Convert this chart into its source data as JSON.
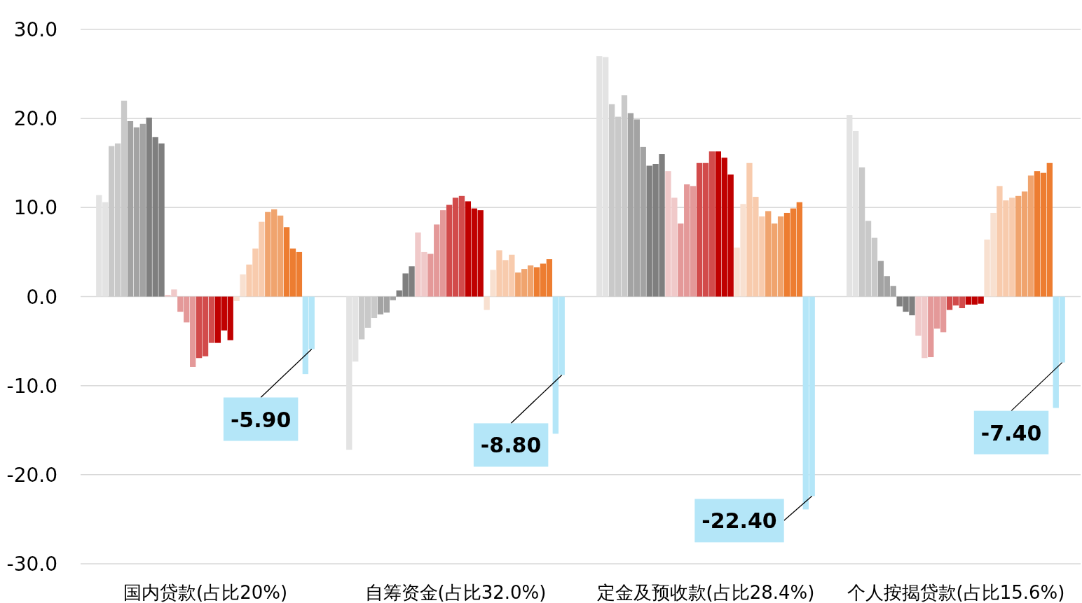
{
  "chart_data": {
    "type": "bar",
    "categories": [
      null,
      null,
      null,
      null,
      null,
      null,
      null,
      null,
      null,
      null,
      null,
      null,
      null,
      null,
      null,
      null,
      null,
      "国内贷款(占比20%)",
      null,
      null,
      null,
      null,
      null,
      null,
      null,
      null,
      null,
      null,
      null,
      null,
      null,
      null,
      null,
      null,
      null,
      null,
      null,
      null,
      null,
      null,
      null,
      null,
      null,
      null,
      null,
      null,
      null,
      null,
      null,
      null,
      null,
      null,
      null,
      null,
      null,
      null,
      null,
      "自筹资金(占比32.0%)",
      null,
      null,
      null,
      null,
      null,
      null,
      null,
      null,
      null,
      null,
      null,
      null,
      null,
      null,
      null,
      null,
      null,
      null,
      null,
      null,
      null,
      null,
      null,
      null,
      null,
      null,
      null,
      null,
      null,
      null,
      null,
      null,
      null,
      null,
      null,
      null,
      null,
      null,
      null,
      "定金及预收款(占比28.4%)",
      null,
      null,
      null,
      null,
      null,
      null,
      null,
      null,
      null,
      null,
      null,
      null,
      null,
      null,
      null,
      null,
      null,
      null,
      null,
      null,
      null,
      null,
      null,
      null,
      null,
      null,
      null,
      null,
      null,
      null,
      null,
      null,
      null,
      null,
      null,
      null,
      null,
      null,
      null,
      "个人按揭贷款(占比15.6%)",
      null,
      null,
      null,
      null,
      null,
      null,
      null,
      null,
      null,
      null,
      null,
      null,
      null,
      null,
      null,
      null,
      null
    ],
    "values": [
      11.4,
      10.6,
      16.9,
      17.2,
      22.0,
      19.7,
      19.0,
      19.4,
      20.1,
      17.9,
      17.2,
      0.2,
      0.8,
      -1.7,
      -2.9,
      -7.9,
      -6.9,
      -6.7,
      -5.2,
      -5.2,
      -3.8,
      -4.9,
      -0.5,
      2.5,
      3.6,
      5.4,
      8.4,
      9.5,
      9.8,
      9.1,
      7.8,
      5.4,
      5.0,
      -8.7,
      -5.9,
      null,
      null,
      null,
      null,
      null,
      -17.2,
      -7.3,
      -4.8,
      -3.5,
      -2.4,
      -2.0,
      -1.8,
      -0.4,
      0.7,
      2.6,
      3.4,
      7.2,
      5.0,
      4.8,
      8.1,
      9.7,
      10.3,
      11.1,
      11.3,
      10.7,
      9.9,
      9.7,
      -1.5,
      3.0,
      5.2,
      4.1,
      4.7,
      2.7,
      3.1,
      3.5,
      3.3,
      3.7,
      4.2,
      -15.4,
      -8.8,
      null,
      null,
      null,
      null,
      null,
      27.0,
      26.9,
      21.6,
      20.2,
      22.6,
      20.6,
      19.9,
      16.8,
      14.7,
      14.9,
      16.0,
      14.1,
      11.1,
      8.2,
      12.6,
      12.4,
      15.0,
      15.0,
      16.3,
      16.3,
      15.6,
      13.7,
      5.5,
      10.4,
      15.0,
      11.2,
      9.0,
      9.6,
      8.2,
      9.0,
      9.4,
      9.9,
      10.6,
      -23.9,
      -22.4,
      null,
      null,
      null,
      null,
      null,
      20.4,
      18.6,
      14.5,
      8.5,
      6.6,
      4.0,
      2.3,
      1.2,
      -1.1,
      -1.7,
      -2.1,
      -4.4,
      -6.9,
      -6.8,
      -3.6,
      -4.0,
      -1.5,
      -1.0,
      -1.3,
      -0.9,
      -0.9,
      -0.8,
      6.4,
      9.4,
      12.4,
      10.8,
      11.1,
      11.3,
      11.8,
      13.6,
      14.1,
      13.9,
      15.0,
      -12.5,
      -7.4
    ],
    "colors": [
      "#e3e3e3",
      "#e3e3e3",
      "#c9c9c9",
      "#c9c9c9",
      "#c9c9c9",
      "#a3a3a3",
      "#a3a3a3",
      "#a3a3a3",
      "#7f7f7f",
      "#7f7f7f",
      "#7f7f7f",
      "#f0c9c9",
      "#f0c9c9",
      "#e49999",
      "#e49999",
      "#e49999",
      "#d24b4b",
      "#d24b4b",
      "#d24b4b",
      "#c00000",
      "#c00000",
      "#c00000",
      "#f8e0d0",
      "#f8e0d0",
      "#f8cbad",
      "#f8cbad",
      "#f8cbad",
      "#f0a46e",
      "#f0a46e",
      "#f0a46e",
      "#ed7d31",
      "#ed7d31",
      "#ed7d31",
      "#b4e6f8",
      "#b4e6f8",
      null,
      null,
      null,
      null,
      null,
      "#e3e3e3",
      "#e3e3e3",
      "#c9c9c9",
      "#c9c9c9",
      "#c9c9c9",
      "#a3a3a3",
      "#a3a3a3",
      "#a3a3a3",
      "#7f7f7f",
      "#7f7f7f",
      "#7f7f7f",
      "#f0c9c9",
      "#f0c9c9",
      "#e49999",
      "#e49999",
      "#e49999",
      "#d24b4b",
      "#d24b4b",
      "#d24b4b",
      "#c00000",
      "#c00000",
      "#c00000",
      "#f8e0d0",
      "#f8e0d0",
      "#f8cbad",
      "#f8cbad",
      "#f8cbad",
      "#f0a46e",
      "#f0a46e",
      "#f0a46e",
      "#ed7d31",
      "#ed7d31",
      "#ed7d31",
      "#b4e6f8",
      "#b4e6f8",
      null,
      null,
      null,
      null,
      null,
      "#e3e3e3",
      "#e3e3e3",
      "#c9c9c9",
      "#c9c9c9",
      "#c9c9c9",
      "#a3a3a3",
      "#a3a3a3",
      "#a3a3a3",
      "#7f7f7f",
      "#7f7f7f",
      "#7f7f7f",
      "#f0c9c9",
      "#f0c9c9",
      "#e49999",
      "#e49999",
      "#e49999",
      "#d24b4b",
      "#d24b4b",
      "#d24b4b",
      "#c00000",
      "#c00000",
      "#c00000",
      "#f8e0d0",
      "#f8e0d0",
      "#f8cbad",
      "#f8cbad",
      "#f8cbad",
      "#f0a46e",
      "#f0a46e",
      "#f0a46e",
      "#ed7d31",
      "#ed7d31",
      "#ed7d31",
      "#b4e6f8",
      "#b4e6f8",
      null,
      null,
      null,
      null,
      null,
      "#e3e3e3",
      "#e3e3e3",
      "#c9c9c9",
      "#c9c9c9",
      "#c9c9c9",
      "#a3a3a3",
      "#a3a3a3",
      "#a3a3a3",
      "#7f7f7f",
      "#7f7f7f",
      "#7f7f7f",
      "#f0c9c9",
      "#f0c9c9",
      "#e49999",
      "#e49999",
      "#e49999",
      "#d24b4b",
      "#d24b4b",
      "#d24b4b",
      "#c00000",
      "#c00000",
      "#c00000",
      "#f8e0d0",
      "#f8e0d0",
      "#f8cbad",
      "#f8cbad",
      "#f8cbad",
      "#f0a46e",
      "#f0a46e",
      "#f0a46e",
      "#ed7d31",
      "#ed7d31",
      "#ed7d31",
      "#b4e6f8",
      "#b4e6f8"
    ],
    "value_labels": [
      null,
      null,
      null,
      null,
      null,
      null,
      null,
      null,
      null,
      null,
      null,
      null,
      null,
      null,
      null,
      null,
      null,
      null,
      null,
      null,
      null,
      null,
      null,
      null,
      null,
      null,
      null,
      null,
      null,
      null,
      null,
      null,
      null,
      null,
      "-5.90",
      null,
      null,
      null,
      null,
      null,
      null,
      null,
      null,
      null,
      null,
      null,
      null,
      null,
      null,
      null,
      null,
      null,
      null,
      null,
      null,
      null,
      null,
      null,
      null,
      null,
      null,
      null,
      null,
      null,
      null,
      null,
      null,
      null,
      null,
      null,
      null,
      null,
      null,
      null,
      "-8.80",
      null,
      null,
      null,
      null,
      null,
      null,
      null,
      null,
      null,
      null,
      null,
      null,
      null,
      null,
      null,
      null,
      null,
      null,
      null,
      null,
      null,
      null,
      null,
      null,
      null,
      null,
      null,
      null,
      null,
      null,
      null,
      null,
      null,
      null,
      null,
      null,
      null,
      null,
      null,
      "-22.40",
      null,
      null,
      null,
      null,
      null,
      null,
      null,
      null,
      null,
      null,
      null,
      null,
      null,
      null,
      null,
      null,
      null,
      null,
      null,
      null,
      null,
      null,
      null,
      null,
      null,
      null,
      null,
      null,
      null,
      null,
      null,
      null,
      null,
      null,
      null,
      null,
      null,
      null,
      null,
      "-7.40"
    ],
    "ylim": [
      -30,
      30
    ],
    "yticks": [
      {
        "value": -30,
        "label": "-30.0"
      },
      {
        "value": -20,
        "label": "-20.0"
      },
      {
        "value": -10,
        "label": "-10.0"
      },
      {
        "value": 0,
        "label": "0.0"
      },
      {
        "value": 10,
        "label": "10.0"
      },
      {
        "value": 20,
        "label": "20.0"
      },
      {
        "value": 30,
        "label": "30.0"
      }
    ],
    "grid": "y"
  }
}
